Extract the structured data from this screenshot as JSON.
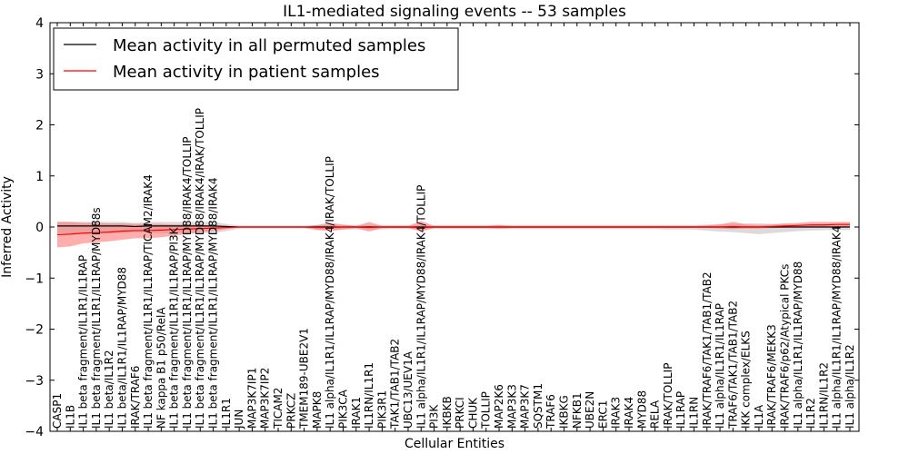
{
  "chart_data": {
    "type": "line",
    "title": "IL1-mediated signaling events -- 53 samples",
    "xlabel": "Cellular Entities",
    "ylabel": "Inferred Activity",
    "ylim": [
      -4,
      4
    ],
    "yticks": [
      -4,
      -3,
      -2,
      -1,
      0,
      1,
      2,
      3,
      4
    ],
    "legend": {
      "placement": "top-left",
      "entries": [
        {
          "label": "Mean activity in all permuted samples",
          "color": "#000000"
        },
        {
          "label": "Mean activity in patient samples",
          "color": "#ff0000"
        }
      ]
    },
    "colors": {
      "permuted": "#000000",
      "patient": "#ff0000",
      "permuted_band": "#b0b0b0",
      "patient_band": "#ff6b6b"
    },
    "categories": [
      "CASP1",
      "IL1B",
      "IL1 beta fragment/IL1R1/IL1RAP",
      "IL1 beta fragment/IL1R1/IL1RAP/MYD88s",
      "IL1 beta/IL1R2",
      "IL1 beta/IL1R1/IL1RAP/MYD88",
      "IRAK/TRAF6",
      "IL1 beta fragment/IL1R1/IL1RAP/TICAM2/IRAK4",
      "NF kappa B1 p50/RelA",
      "IL1 beta fragment/IL1R1/IL1RAP/PI3K",
      "IL1 beta fragment/IL1R1/IL1RAP/MYD88/IRAK4/TOLLIP",
      "IL1 beta fragment/IL1R1/IL1RAP/MYD88/IRAK4/IRAK/TOLLIP",
      "IL1 beta fragment/IL1R1/IL1RAP/MYD88/IRAK4",
      "IL1R1",
      "JUN",
      "MAP3K7IP1",
      "MAP3K7IP2",
      "TICAM2",
      "PRKCZ",
      "TMEM189-UBE2V1",
      "MAPK8",
      "IL1 alpha/IL1R1/IL1RAP/MYD88/IRAK4/IRAK/TOLLIP",
      "PIK3CA",
      "IRAK1",
      "IL1RN/IL1R1",
      "PIK3R1",
      "TAK1/TAB1/TAB2",
      "UBC13/UEV1A",
      "IL1 alpha/IL1R1/IL1RAP/MYD88/IRAK4/TOLLIP",
      "PI3K",
      "IKBKB",
      "PRKCI",
      "CHUK",
      "TOLLIP",
      "MAP2K6",
      "MAP3K3",
      "MAP3K7",
      "SQSTM1",
      "TRAF6",
      "IKBKG",
      "NFKB1",
      "UBE2N",
      "ERC1",
      "IRAK3",
      "IRAK4",
      "MYD88",
      "RELA",
      "IRAK/TOLLIP",
      "IL1RAP",
      "IL1RN",
      "IRAK/TRAF6/TAK1/TAB1/TAB2",
      "IL1 alpha/IL1R1/IL1RAP",
      "TRAF6/TAK1/TAB1/TAB2",
      "IKK complex/ELKS",
      "IL1A",
      "IRAK/TRAF6/MEKK3",
      "IRAK/TRAF6/p62/Atypical PKCs",
      "IL1 alpha/IL1R1/IL1RAP/MYD88",
      "IL1R2",
      "IL1RN/IL1R2",
      "IL1 alpha/IL1R1/IL1RAP/MYD88/IRAK4",
      "IL1 alpha/IL1R2"
    ],
    "series": [
      {
        "name": "Mean activity in all permuted samples",
        "values": [
          0.02,
          0.02,
          0.02,
          0.02,
          0.02,
          0.02,
          0.01,
          0.02,
          0.02,
          0.02,
          0.02,
          0.02,
          0.02,
          0.01,
          0.0,
          0.0,
          0.0,
          0.0,
          0.0,
          0.0,
          0.0,
          0.0,
          0.0,
          0.0,
          0.0,
          0.0,
          0.0,
          0.0,
          0.0,
          0.0,
          0.0,
          0.0,
          0.0,
          0.0,
          0.0,
          0.0,
          0.0,
          0.0,
          0.0,
          0.0,
          0.0,
          0.0,
          0.0,
          0.0,
          0.0,
          0.0,
          0.0,
          0.0,
          0.0,
          0.0,
          0.0,
          0.0,
          0.0,
          0.0,
          0.0,
          0.0,
          0.0,
          0.0,
          0.0,
          0.0,
          0.0,
          0.0
        ],
        "band_low": [
          -0.12,
          -0.12,
          -0.12,
          -0.12,
          -0.12,
          -0.12,
          -0.1,
          -0.12,
          -0.12,
          -0.12,
          -0.12,
          -0.12,
          -0.12,
          -0.08,
          -0.03,
          -0.03,
          -0.03,
          -0.03,
          -0.03,
          -0.03,
          -0.05,
          -0.05,
          -0.05,
          -0.05,
          -0.05,
          -0.05,
          -0.04,
          -0.04,
          -0.05,
          -0.04,
          -0.04,
          -0.04,
          -0.04,
          -0.04,
          -0.04,
          -0.04,
          -0.04,
          -0.04,
          -0.04,
          -0.04,
          -0.04,
          -0.04,
          -0.04,
          -0.04,
          -0.04,
          -0.04,
          -0.04,
          -0.05,
          -0.05,
          -0.05,
          -0.07,
          -0.09,
          -0.1,
          -0.12,
          -0.14,
          -0.12,
          -0.1,
          -0.08,
          -0.07,
          -0.06,
          -0.06,
          -0.06
        ],
        "band_high": [
          0.1,
          0.1,
          0.1,
          0.1,
          0.1,
          0.1,
          0.08,
          0.1,
          0.1,
          0.1,
          0.1,
          0.1,
          0.1,
          0.06,
          0.03,
          0.03,
          0.03,
          0.03,
          0.03,
          0.03,
          0.04,
          0.04,
          0.04,
          0.04,
          0.04,
          0.04,
          0.04,
          0.04,
          0.04,
          0.04,
          0.04,
          0.04,
          0.04,
          0.04,
          0.04,
          0.04,
          0.04,
          0.04,
          0.04,
          0.04,
          0.04,
          0.04,
          0.04,
          0.04,
          0.04,
          0.04,
          0.04,
          0.04,
          0.04,
          0.04,
          0.05,
          0.06,
          0.06,
          0.07,
          0.07,
          0.06,
          0.06,
          0.05,
          0.05,
          0.05,
          0.05,
          0.05
        ]
      },
      {
        "name": "Mean activity in patient samples",
        "values": [
          -0.15,
          -0.14,
          -0.12,
          -0.11,
          -0.1,
          -0.08,
          -0.07,
          -0.07,
          -0.06,
          -0.05,
          -0.04,
          -0.03,
          -0.02,
          -0.01,
          0.0,
          0.0,
          0.0,
          0.0,
          0.0,
          0.0,
          -0.01,
          -0.01,
          0.0,
          0.0,
          -0.01,
          0.0,
          0.0,
          0.0,
          -0.01,
          0.0,
          0.0,
          0.0,
          0.0,
          0.0,
          0.0,
          0.0,
          0.0,
          0.0,
          0.0,
          0.0,
          0.0,
          0.0,
          0.0,
          0.0,
          0.0,
          0.0,
          0.0,
          0.0,
          0.0,
          0.0,
          0.0,
          0.0,
          0.01,
          0.0,
          0.0,
          0.01,
          0.02,
          0.03,
          0.04,
          0.04,
          0.05,
          0.05
        ],
        "band_low": [
          -0.4,
          -0.38,
          -0.32,
          -0.3,
          -0.28,
          -0.25,
          -0.22,
          -0.22,
          -0.2,
          -0.17,
          -0.14,
          -0.1,
          -0.08,
          -0.04,
          -0.01,
          -0.01,
          -0.01,
          -0.01,
          -0.01,
          -0.01,
          -0.06,
          -0.08,
          -0.05,
          -0.02,
          -0.09,
          -0.02,
          -0.02,
          -0.02,
          -0.09,
          -0.02,
          -0.02,
          -0.02,
          -0.02,
          -0.02,
          -0.03,
          -0.02,
          -0.02,
          -0.02,
          -0.02,
          -0.02,
          -0.02,
          -0.02,
          -0.02,
          -0.02,
          -0.02,
          -0.02,
          -0.02,
          -0.02,
          -0.02,
          -0.02,
          -0.02,
          -0.03,
          -0.04,
          -0.03,
          -0.03,
          -0.02,
          -0.01,
          0.0,
          0.0,
          0.0,
          0.0,
          0.0
        ],
        "band_high": [
          0.1,
          0.1,
          0.08,
          0.08,
          0.07,
          0.07,
          0.06,
          0.06,
          0.06,
          0.05,
          0.05,
          0.04,
          0.03,
          0.02,
          0.01,
          0.01,
          0.01,
          0.01,
          0.01,
          0.01,
          0.04,
          0.08,
          0.05,
          0.02,
          0.1,
          0.02,
          0.02,
          0.02,
          0.12,
          0.02,
          0.02,
          0.02,
          0.02,
          0.02,
          0.04,
          0.02,
          0.02,
          0.02,
          0.02,
          0.02,
          0.02,
          0.02,
          0.02,
          0.02,
          0.02,
          0.02,
          0.02,
          0.02,
          0.02,
          0.02,
          0.03,
          0.05,
          0.1,
          0.05,
          0.04,
          0.05,
          0.07,
          0.08,
          0.1,
          0.1,
          0.1,
          0.1
        ]
      }
    ]
  }
}
